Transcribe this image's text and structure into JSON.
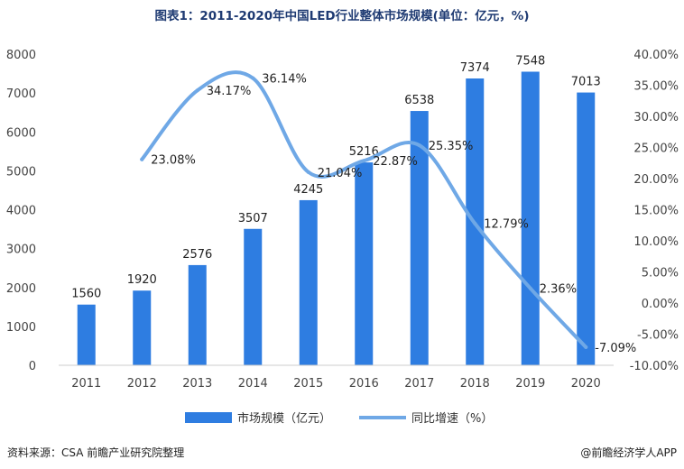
{
  "chart_data": {
    "type": "bar",
    "title": "图表1：2011-2020年中国LED行业整体市场规模(单位：亿元，%)",
    "categories": [
      "2011",
      "2012",
      "2013",
      "2014",
      "2015",
      "2016",
      "2017",
      "2018",
      "2019",
      "2020"
    ],
    "series": [
      {
        "name": "市场规模（亿元）",
        "type": "bar",
        "axis": "left",
        "values": [
          1560,
          1920,
          2576,
          3507,
          4245,
          5216,
          6538,
          7374,
          7548,
          7013
        ],
        "labels": [
          "1560",
          "1920",
          "2576",
          "3507",
          "4245",
          "5216",
          "6538",
          "7374",
          "7548",
          "7013"
        ]
      },
      {
        "name": "同比增速（%）",
        "type": "line",
        "axis": "right",
        "values": [
          null,
          23.08,
          34.17,
          36.14,
          21.04,
          22.87,
          25.35,
          12.79,
          2.36,
          -7.09
        ],
        "labels": [
          "",
          "23.08%",
          "34.17%",
          "36.14%",
          "21.04%",
          "22.87%",
          "25.35%",
          "12.79%",
          "2.36%",
          "-7.09%"
        ]
      }
    ],
    "y_left": {
      "min": 0,
      "max": 8000,
      "step": 1000,
      "ticks": [
        "0",
        "1000",
        "2000",
        "3000",
        "4000",
        "5000",
        "6000",
        "7000",
        "8000"
      ]
    },
    "y_right": {
      "min": -10,
      "max": 40,
      "step": 5,
      "ticks": [
        "-10.00%",
        "-5.00%",
        "0.00%",
        "5.00%",
        "10.00%",
        "15.00%",
        "20.00%",
        "25.00%",
        "30.00%",
        "35.00%",
        "40.00%"
      ]
    },
    "legend": [
      "市场规模（亿元）",
      "同比增速（%）"
    ],
    "legend_position": "bottom",
    "grid": false
  },
  "colors": {
    "bar": "#2e7de1",
    "line": "#6fa8e6",
    "title": "#1f3b73"
  },
  "footer": {
    "source": "资料来源：CSA 前瞻产业研究院整理",
    "brand": "@前瞻经济学人APP"
  },
  "watermark": "前瞻产业研究院"
}
